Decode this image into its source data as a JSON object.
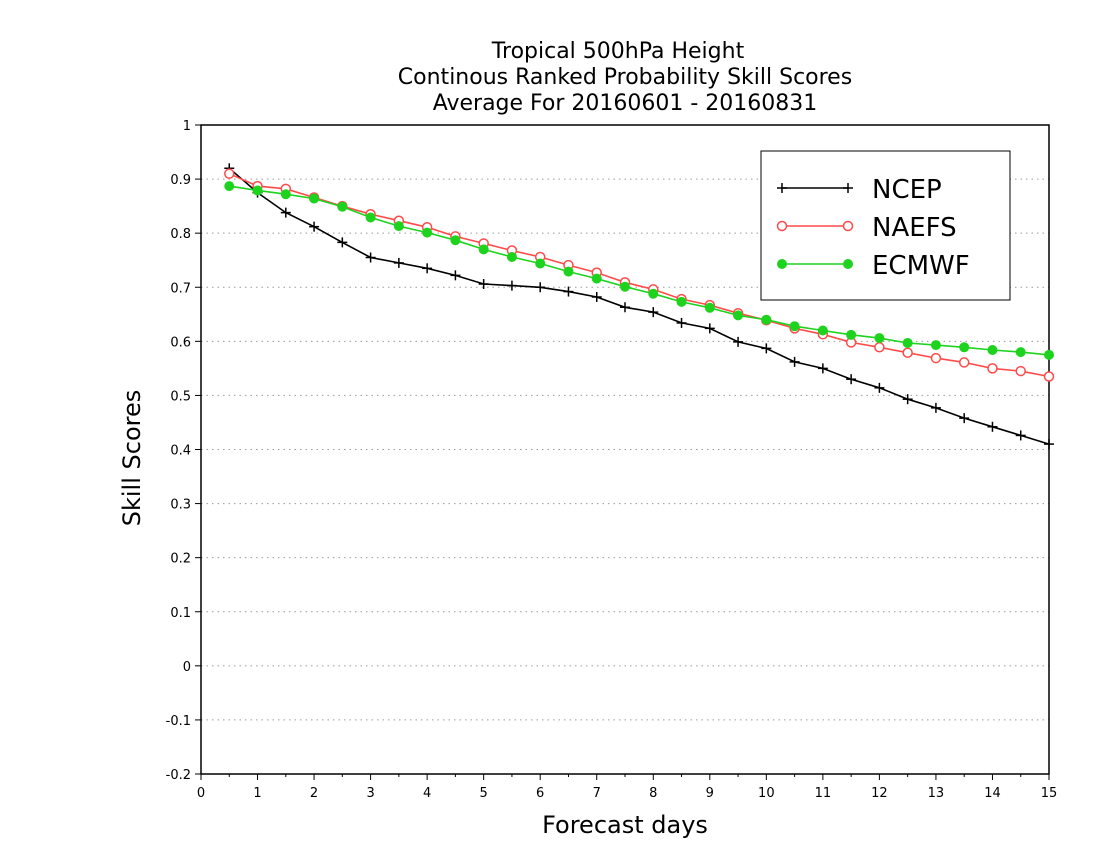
{
  "chart_data": {
    "type": "line",
    "title": [
      "Tropical 500hPa Height",
      "Continous Ranked Probability Skill Scores",
      "Average For 20160601 - 20160831"
    ],
    "xlabel": "Forecast days",
    "ylabel": "Skill Scores",
    "xlim": [
      0,
      15
    ],
    "ylim": [
      -0.2,
      1
    ],
    "xticks": [
      "0",
      "1",
      "2",
      "3",
      "4",
      "5",
      "6",
      "7",
      "8",
      "9",
      "10",
      "11",
      "12",
      "13",
      "14",
      "15"
    ],
    "yticks": [
      "1",
      "0.9",
      "0.8",
      "0.7",
      "0.6",
      "0.5",
      "0.4",
      "0.3",
      "0.2",
      "0.1",
      "0",
      "-0.1",
      "-0.2"
    ],
    "grid": true,
    "legend_position": "top-right",
    "x": [
      0.5,
      1,
      1.5,
      2,
      2.5,
      3,
      3.5,
      4,
      4.5,
      5,
      5.5,
      6,
      6.5,
      7,
      7.5,
      8,
      8.5,
      9,
      9.5,
      10,
      10.5,
      11,
      11.5,
      12,
      12.5,
      13,
      13.5,
      14,
      14.5,
      15
    ],
    "series": [
      {
        "name": "NCEP",
        "color": "#000000",
        "marker": "plus",
        "values": [
          0.92,
          0.875,
          0.838,
          0.812,
          0.783,
          0.755,
          0.745,
          0.735,
          0.722,
          0.706,
          0.703,
          0.7,
          0.692,
          0.682,
          0.663,
          0.654,
          0.634,
          0.624,
          0.599,
          0.587,
          0.562,
          0.55,
          0.53,
          0.514,
          0.493,
          0.477,
          0.458,
          0.442,
          0.426,
          0.41
        ]
      },
      {
        "name": "NAEFS",
        "color": "#ff4a4a",
        "marker": "open-circle",
        "values": [
          0.91,
          0.887,
          0.882,
          0.866,
          0.85,
          0.835,
          0.823,
          0.811,
          0.794,
          0.781,
          0.768,
          0.756,
          0.741,
          0.727,
          0.709,
          0.696,
          0.678,
          0.667,
          0.652,
          0.639,
          0.624,
          0.613,
          0.598,
          0.589,
          0.579,
          0.569,
          0.561,
          0.55,
          0.545,
          0.535
        ]
      },
      {
        "name": "ECMWF",
        "color": "#1ed31e",
        "marker": "filled-circle",
        "values": [
          0.887,
          0.879,
          0.872,
          0.864,
          0.849,
          0.829,
          0.813,
          0.801,
          0.787,
          0.77,
          0.756,
          0.744,
          0.729,
          0.716,
          0.701,
          0.688,
          0.673,
          0.662,
          0.648,
          0.64,
          0.628,
          0.62,
          0.612,
          0.606,
          0.597,
          0.593,
          0.589,
          0.584,
          0.58,
          0.575
        ]
      }
    ]
  }
}
